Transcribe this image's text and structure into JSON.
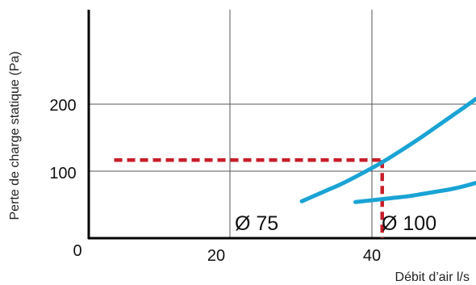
{
  "chart_data": {
    "type": "line",
    "ylabel": "Perte de charge statique  (Pa)",
    "xlabel": "Débit d’air l/s",
    "xlim": [
      -16.8,
      54
    ],
    "ylim": [
      0,
      310
    ],
    "grid": true,
    "x_ticks": [
      {
        "value": 20,
        "label": "20"
      },
      {
        "value": 40,
        "label": "40"
      }
    ],
    "y_ticks": [
      {
        "value": 0,
        "label": "0"
      },
      {
        "value": 100,
        "label": "100"
      },
      {
        "value": 200,
        "label": "200"
      }
    ],
    "series": [
      {
        "name": "Ø 75",
        "color": "#1aa3d4",
        "x": [
          28,
          31,
          34,
          37,
          40,
          43,
          46,
          49,
          52,
          54
        ],
        "y": [
          50,
          62,
          74,
          88,
          103,
          120,
          138,
          157,
          176,
          189
        ]
      },
      {
        "name": "Ø 100",
        "color": "#1aa3d4",
        "x": [
          36,
          38,
          40,
          42,
          44,
          46,
          48,
          50,
          52,
          54
        ],
        "y": [
          49,
          51,
          53,
          55,
          57,
          60,
          63,
          66,
          70,
          75
        ]
      }
    ],
    "annotations": {
      "color": "#c81e2a",
      "reading_point": {
        "x": 40,
        "y": 106
      },
      "x_range_start": 0
    }
  }
}
